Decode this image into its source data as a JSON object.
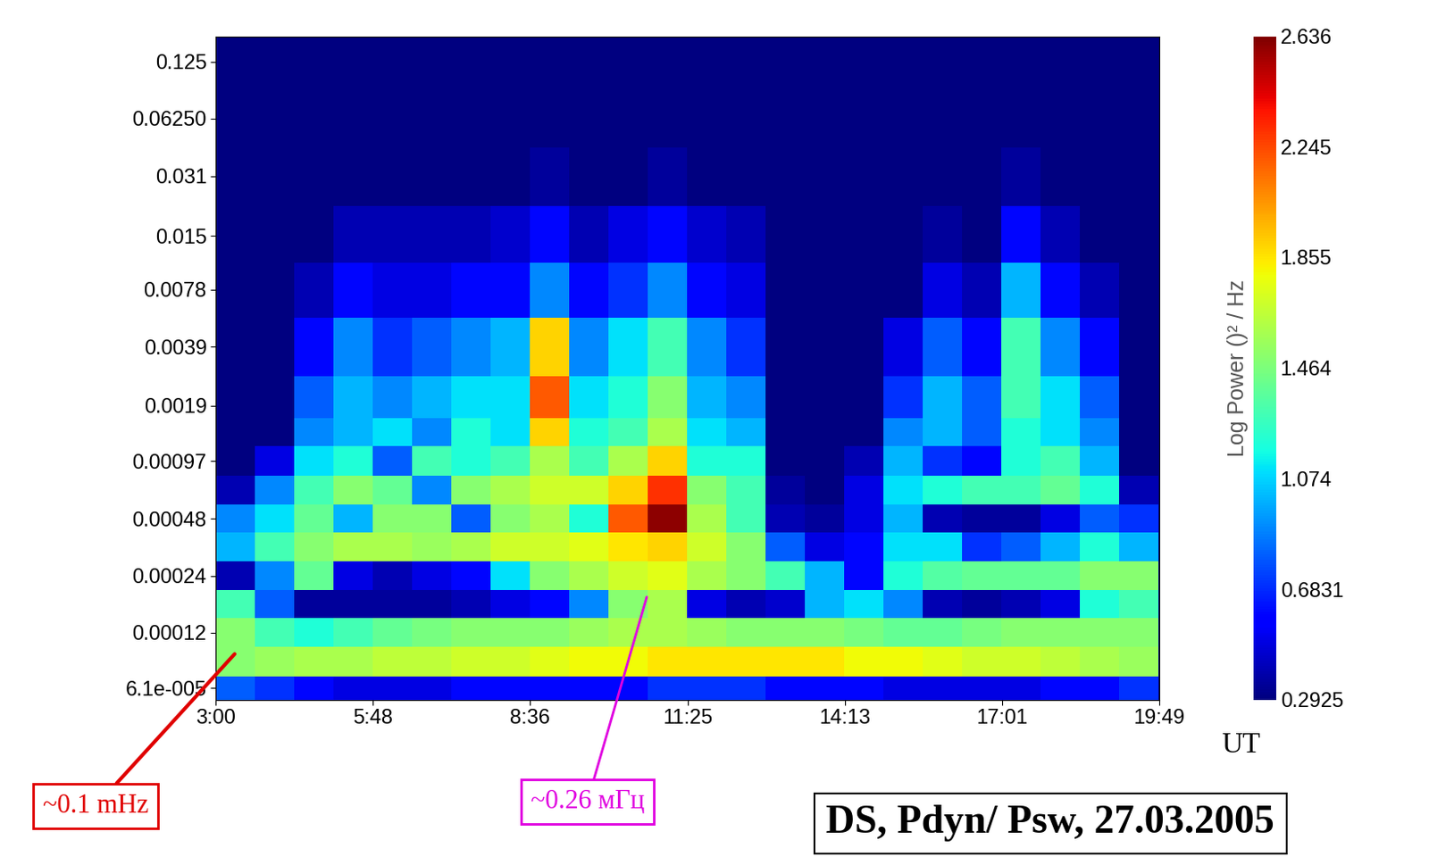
{
  "chart_data": {
    "type": "heatmap",
    "title": "DS, Pdyn/ Psw, 27.03.2005",
    "xlabel": "UT",
    "colorbar_label": "Log Power ()² / Hz",
    "color": "jet",
    "log": "y",
    "annotations": [
      {
        "text": "~0.1 mHz",
        "color": "#e00000"
      },
      {
        "text": "~0.26 мГц",
        "color": "#e000e0"
      }
    ],
    "xlim": [
      3.0,
      19.8167
    ],
    "xticks": [
      {
        "value": 3.0,
        "label": "3:00"
      },
      {
        "value": 5.8,
        "label": "5:48"
      },
      {
        "value": 8.6,
        "label": "8:36"
      },
      {
        "value": 11.4167,
        "label": "11:25"
      },
      {
        "value": 14.2167,
        "label": "14:13"
      },
      {
        "value": 17.0167,
        "label": "17:01"
      },
      {
        "value": 19.8167,
        "label": "19:49"
      }
    ],
    "ylim": [
      5.3e-05,
      0.17
    ],
    "yticks": [
      {
        "value": 6.1e-05,
        "label": "6.1e-005"
      },
      0.00012,
      0.00024,
      0.00048,
      0.00097,
      0.0019,
      0.0039,
      0.0078,
      0.015,
      0.031,
      {
        "value": 0.0625,
        "label": "0.06250"
      },
      0.125
    ],
    "color_range": [
      0.2925,
      2.636
    ],
    "color_ticks": [
      0.2925,
      0.6831,
      1.074,
      1.464,
      1.855,
      2.245,
      2.636
    ],
    "time": [
      3.35,
      4.05,
      4.75,
      5.45,
      6.15,
      6.85,
      7.55,
      8.25,
      8.95,
      9.65,
      10.35,
      11.05,
      11.75,
      12.45,
      13.15,
      13.85,
      14.55,
      15.25,
      15.95,
      16.65,
      17.35,
      18.05,
      18.75,
      19.45
    ],
    "frequency": [
      5.8e-05,
      8.5e-05,
      0.00012,
      0.00017,
      0.00024,
      0.00034,
      0.00048,
      0.00068,
      0.00097,
      0.0014,
      0.0019,
      0.0039,
      0.0078,
      0.015,
      0.031,
      0.0625,
      0.125
    ],
    "power": [
      [
        0.8,
        0.7,
        0.6,
        0.5,
        0.5,
        0.5,
        0.6,
        0.6,
        0.6,
        0.6,
        0.6,
        0.7,
        0.7,
        0.7,
        0.6,
        0.6,
        0.6,
        0.5,
        0.5,
        0.5,
        0.5,
        0.6,
        0.6,
        0.7
      ],
      [
        1.5,
        1.55,
        1.6,
        1.6,
        1.65,
        1.65,
        1.7,
        1.7,
        1.75,
        1.8,
        1.8,
        1.85,
        1.85,
        1.85,
        1.85,
        1.85,
        1.8,
        1.8,
        1.75,
        1.7,
        1.7,
        1.65,
        1.6,
        1.55
      ],
      [
        1.5,
        1.3,
        1.2,
        1.3,
        1.4,
        1.45,
        1.5,
        1.5,
        1.5,
        1.55,
        1.6,
        1.6,
        1.55,
        1.5,
        1.5,
        1.5,
        1.45,
        1.4,
        1.4,
        1.45,
        1.5,
        1.5,
        1.5,
        1.5
      ],
      [
        1.3,
        0.8,
        0.35,
        0.35,
        0.35,
        0.35,
        0.4,
        0.5,
        0.6,
        0.9,
        1.5,
        1.6,
        0.5,
        0.4,
        0.45,
        1.0,
        1.1,
        0.9,
        0.4,
        0.35,
        0.4,
        0.5,
        1.2,
        1.3
      ],
      [
        0.4,
        0.9,
        1.4,
        0.5,
        0.4,
        0.5,
        0.6,
        1.1,
        1.5,
        1.6,
        1.7,
        1.75,
        1.6,
        1.5,
        1.3,
        1.0,
        0.6,
        1.2,
        1.35,
        1.4,
        1.4,
        1.4,
        1.5,
        1.5
      ],
      [
        1.0,
        1.3,
        1.5,
        1.6,
        1.6,
        1.55,
        1.6,
        1.7,
        1.7,
        1.75,
        1.85,
        1.9,
        1.7,
        1.5,
        0.8,
        0.5,
        0.6,
        1.1,
        1.1,
        0.7,
        0.8,
        1.0,
        1.2,
        1.0
      ],
      [
        0.9,
        1.1,
        1.4,
        1.0,
        1.5,
        1.5,
        0.8,
        1.5,
        1.6,
        1.2,
        2.2,
        2.6,
        1.6,
        1.3,
        0.4,
        0.35,
        0.5,
        1.0,
        0.4,
        0.35,
        0.35,
        0.5,
        0.8,
        0.7
      ],
      [
        0.4,
        0.9,
        1.3,
        1.5,
        1.4,
        0.9,
        1.5,
        1.6,
        1.7,
        1.7,
        1.9,
        2.3,
        1.5,
        1.3,
        0.35,
        0.3,
        0.5,
        1.1,
        1.2,
        1.3,
        1.3,
        1.4,
        1.2,
        0.4
      ],
      [
        0.3,
        0.5,
        1.1,
        1.2,
        0.8,
        1.3,
        1.2,
        1.3,
        1.6,
        1.3,
        1.6,
        1.9,
        1.2,
        1.2,
        0.3,
        0.3,
        0.4,
        1.0,
        0.7,
        0.6,
        1.2,
        1.3,
        1.0,
        0.3
      ],
      [
        0.3,
        0.3,
        0.9,
        1.0,
        1.1,
        0.9,
        1.2,
        1.1,
        1.9,
        1.2,
        1.3,
        1.6,
        1.1,
        1.0,
        0.3,
        0.3,
        0.3,
        0.9,
        1.0,
        0.8,
        1.2,
        1.1,
        0.9,
        0.3
      ],
      [
        0.3,
        0.3,
        0.8,
        1.0,
        0.9,
        1.0,
        1.1,
        1.1,
        2.2,
        1.1,
        1.2,
        1.5,
        1.0,
        0.9,
        0.3,
        0.3,
        0.3,
        0.7,
        1.0,
        0.8,
        1.3,
        1.1,
        0.8,
        0.3
      ],
      [
        0.3,
        0.3,
        0.6,
        0.9,
        0.7,
        0.8,
        0.9,
        1.0,
        1.9,
        0.9,
        1.1,
        1.3,
        0.9,
        0.7,
        0.3,
        0.3,
        0.3,
        0.5,
        0.8,
        0.6,
        1.3,
        0.9,
        0.6,
        0.3
      ],
      [
        0.3,
        0.3,
        0.4,
        0.6,
        0.5,
        0.5,
        0.6,
        0.6,
        0.9,
        0.6,
        0.7,
        0.9,
        0.6,
        0.5,
        0.3,
        0.3,
        0.3,
        0.3,
        0.5,
        0.4,
        1.0,
        0.6,
        0.4,
        0.3
      ],
      [
        0.3,
        0.3,
        0.3,
        0.4,
        0.4,
        0.4,
        0.4,
        0.45,
        0.6,
        0.4,
        0.5,
        0.6,
        0.45,
        0.4,
        0.3,
        0.3,
        0.3,
        0.3,
        0.35,
        0.3,
        0.6,
        0.4,
        0.3,
        0.3
      ],
      [
        0.3,
        0.3,
        0.3,
        0.3,
        0.3,
        0.3,
        0.3,
        0.3,
        0.35,
        0.3,
        0.3,
        0.35,
        0.3,
        0.3,
        0.3,
        0.3,
        0.3,
        0.3,
        0.3,
        0.3,
        0.35,
        0.3,
        0.3,
        0.3
      ],
      [
        0.3,
        0.3,
        0.3,
        0.3,
        0.3,
        0.3,
        0.3,
        0.3,
        0.3,
        0.3,
        0.3,
        0.3,
        0.3,
        0.3,
        0.3,
        0.3,
        0.3,
        0.3,
        0.3,
        0.3,
        0.3,
        0.3,
        0.3,
        0.3
      ],
      [
        0.3,
        0.3,
        0.3,
        0.3,
        0.3,
        0.3,
        0.3,
        0.3,
        0.3,
        0.3,
        0.3,
        0.3,
        0.3,
        0.3,
        0.3,
        0.3,
        0.3,
        0.3,
        0.3,
        0.3,
        0.3,
        0.3,
        0.3,
        0.3
      ]
    ]
  }
}
